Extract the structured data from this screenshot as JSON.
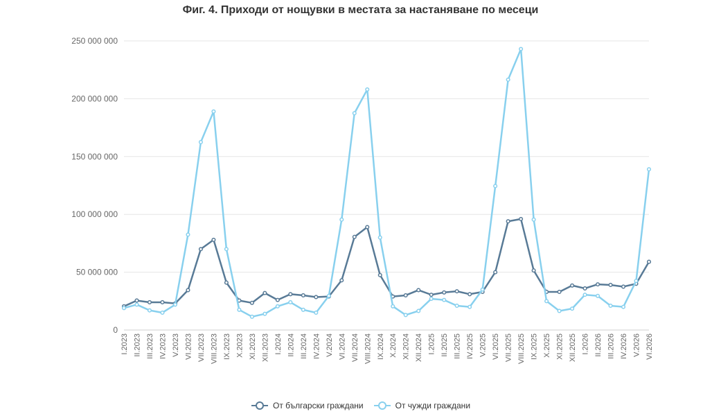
{
  "chart_data": {
    "type": "line",
    "title": "Фиг. 4. Приходи от нощувки в местата за настаняване по месеци",
    "xlabel": "",
    "ylabel": "",
    "ylim": [
      0,
      250000000
    ],
    "yticks": [
      0,
      50000000,
      100000000,
      150000000,
      200000000,
      250000000
    ],
    "ytick_labels": [
      "0",
      "50 000 000",
      "100 000 000",
      "150 000 000",
      "200 000 000",
      "250 000 000"
    ],
    "grid": true,
    "legend_position": "bottom-center",
    "categories": [
      "I.2023",
      "II.2023",
      "III.2023",
      "IV.2023",
      "V.2023",
      "VI.2023",
      "VII.2023",
      "VIII.2023",
      "IX.2023",
      "X.2023",
      "XI.2023",
      "XII.2023",
      "I.2024",
      "II.2024",
      "III.2024",
      "IV.2024",
      "V.2024",
      "VI.2024",
      "VII.2024",
      "VIII.2024",
      "IX.2024",
      "X.2024",
      "XI.2024",
      "XII.2024",
      "I.2025",
      "II.2025",
      "III.2025",
      "IV.2025",
      "V.2025",
      "VI.2025",
      "VII.2025",
      "VIII.2025",
      "IX.2025",
      "X.2025",
      "XI.2025",
      "XII.2025",
      "I.2026",
      "II.2026",
      "III.2026",
      "IV.2026",
      "V.2026",
      "VI.2026"
    ],
    "series": [
      {
        "name": "От български граждани",
        "color": "#587a96",
        "values": [
          20500000,
          25500000,
          24000000,
          24000000,
          23000000,
          34500000,
          70000000,
          78000000,
          41000000,
          25500000,
          23500000,
          32000000,
          26000000,
          31000000,
          30000000,
          28500000,
          29000000,
          43000000,
          80500000,
          89000000,
          47500000,
          29000000,
          30000000,
          34500000,
          30500000,
          32500000,
          33500000,
          31000000,
          33000000,
          50000000,
          94000000,
          96000000,
          51500000,
          33000000,
          33000000,
          38500000,
          36000000,
          39500000,
          39000000,
          37500000,
          40000000,
          59000000
        ]
      },
      {
        "name": "От чужди граждани",
        "color": "#88d0ee",
        "values": [
          19000000,
          22000000,
          17000000,
          15000000,
          22000000,
          82500000,
          162500000,
          189000000,
          70000000,
          17500000,
          11500000,
          14000000,
          20500000,
          24000000,
          17500000,
          15000000,
          29500000,
          95500000,
          187500000,
          208000000,
          80000000,
          20500000,
          13000000,
          16500000,
          27000000,
          26000000,
          21000000,
          20000000,
          35000000,
          124500000,
          216500000,
          243000000,
          95500000,
          25000000,
          16500000,
          18500000,
          30500000,
          29500000,
          21000000,
          20000000,
          42500000,
          139000000
        ]
      }
    ]
  }
}
